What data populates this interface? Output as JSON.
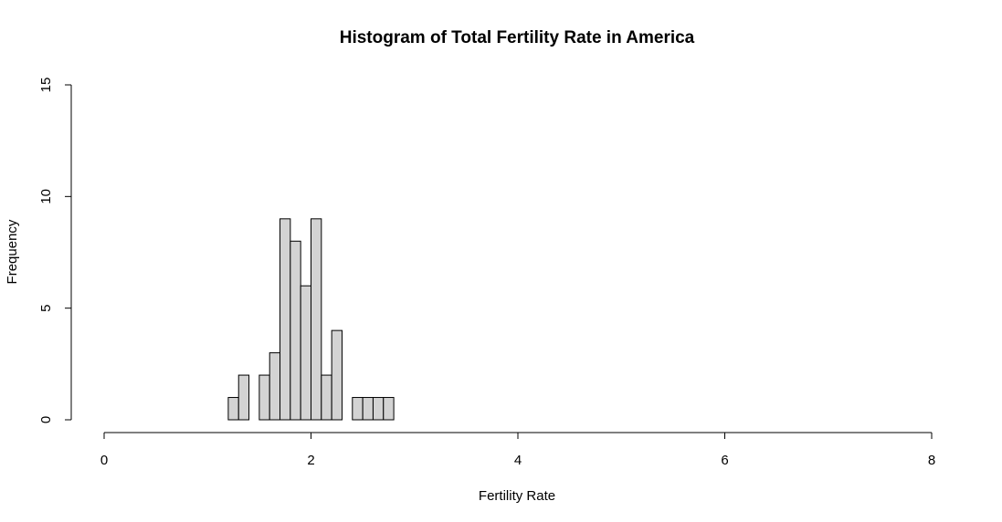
{
  "chart_data": {
    "type": "bar",
    "title": "Histogram of Total Fertility Rate in America",
    "xlabel": "Fertility Rate",
    "ylabel": "Frequency",
    "xlim": [
      0,
      8
    ],
    "ylim": [
      0,
      15
    ],
    "x_ticks": [
      "0",
      "2",
      "4",
      "6",
      "8"
    ],
    "y_ticks": [
      "0",
      "5",
      "10",
      "15"
    ],
    "bin_width": 0.1,
    "bins": [
      {
        "start": 0.0,
        "count": 0
      },
      {
        "start": 0.1,
        "count": 0
      },
      {
        "start": 0.2,
        "count": 0
      },
      {
        "start": 0.3,
        "count": 0
      },
      {
        "start": 0.4,
        "count": 0
      },
      {
        "start": 0.5,
        "count": 0
      },
      {
        "start": 0.6,
        "count": 0
      },
      {
        "start": 0.7,
        "count": 0
      },
      {
        "start": 0.8,
        "count": 0
      },
      {
        "start": 0.9,
        "count": 0
      },
      {
        "start": 1.0,
        "count": 0
      },
      {
        "start": 1.1,
        "count": 0
      },
      {
        "start": 1.2,
        "count": 1
      },
      {
        "start": 1.3,
        "count": 2
      },
      {
        "start": 1.4,
        "count": 0
      },
      {
        "start": 1.5,
        "count": 2
      },
      {
        "start": 1.6,
        "count": 3
      },
      {
        "start": 1.7,
        "count": 9
      },
      {
        "start": 1.8,
        "count": 8
      },
      {
        "start": 1.9,
        "count": 6
      },
      {
        "start": 2.0,
        "count": 9
      },
      {
        "start": 2.1,
        "count": 2
      },
      {
        "start": 2.2,
        "count": 4
      },
      {
        "start": 2.3,
        "count": 0
      },
      {
        "start": 2.4,
        "count": 1
      },
      {
        "start": 2.5,
        "count": 1
      },
      {
        "start": 2.6,
        "count": 1
      },
      {
        "start": 2.7,
        "count": 1
      },
      {
        "start": 2.8,
        "count": 0
      },
      {
        "start": 2.9,
        "count": 0
      },
      {
        "start": 3.0,
        "count": 0
      },
      {
        "start": 3.1,
        "count": 0
      },
      {
        "start": 3.2,
        "count": 0
      },
      {
        "start": 3.3,
        "count": 0
      },
      {
        "start": 3.4,
        "count": 0
      },
      {
        "start": 3.5,
        "count": 0
      },
      {
        "start": 3.6,
        "count": 0
      },
      {
        "start": 3.7,
        "count": 0
      },
      {
        "start": 3.8,
        "count": 0
      },
      {
        "start": 3.9,
        "count": 0
      },
      {
        "start": 4.0,
        "count": 0
      },
      {
        "start": 4.1,
        "count": 0
      },
      {
        "start": 4.2,
        "count": 0
      },
      {
        "start": 4.3,
        "count": 0
      },
      {
        "start": 4.4,
        "count": 0
      },
      {
        "start": 4.5,
        "count": 0
      },
      {
        "start": 4.6,
        "count": 0
      },
      {
        "start": 4.7,
        "count": 0
      },
      {
        "start": 4.8,
        "count": 0
      },
      {
        "start": 4.9,
        "count": 0
      },
      {
        "start": 5.0,
        "count": 0
      },
      {
        "start": 5.1,
        "count": 0
      },
      {
        "start": 5.2,
        "count": 0
      },
      {
        "start": 5.3,
        "count": 0
      },
      {
        "start": 5.4,
        "count": 0
      },
      {
        "start": 5.5,
        "count": 0
      },
      {
        "start": 5.6,
        "count": 0
      },
      {
        "start": 5.7,
        "count": 0
      },
      {
        "start": 5.8,
        "count": 0
      },
      {
        "start": 5.9,
        "count": 0
      },
      {
        "start": 6.0,
        "count": 0
      },
      {
        "start": 6.1,
        "count": 0
      },
      {
        "start": 6.2,
        "count": 0
      },
      {
        "start": 6.3,
        "count": 0
      },
      {
        "start": 6.4,
        "count": 0
      },
      {
        "start": 6.5,
        "count": 0
      },
      {
        "start": 6.6,
        "count": 0
      },
      {
        "start": 6.7,
        "count": 0
      },
      {
        "start": 6.8,
        "count": 0
      },
      {
        "start": 6.9,
        "count": 0
      },
      {
        "start": 7.0,
        "count": 0
      },
      {
        "start": 7.1,
        "count": 0
      },
      {
        "start": 7.2,
        "count": 0
      },
      {
        "start": 7.3,
        "count": 0
      },
      {
        "start": 7.4,
        "count": 0
      },
      {
        "start": 7.5,
        "count": 0
      },
      {
        "start": 7.6,
        "count": 0
      },
      {
        "start": 7.7,
        "count": 0
      },
      {
        "start": 7.8,
        "count": 0
      },
      {
        "start": 7.9,
        "count": 0
      }
    ],
    "bar_fill": "#d3d3d3",
    "bar_stroke": "#000000",
    "grid": false,
    "legend": "none"
  }
}
